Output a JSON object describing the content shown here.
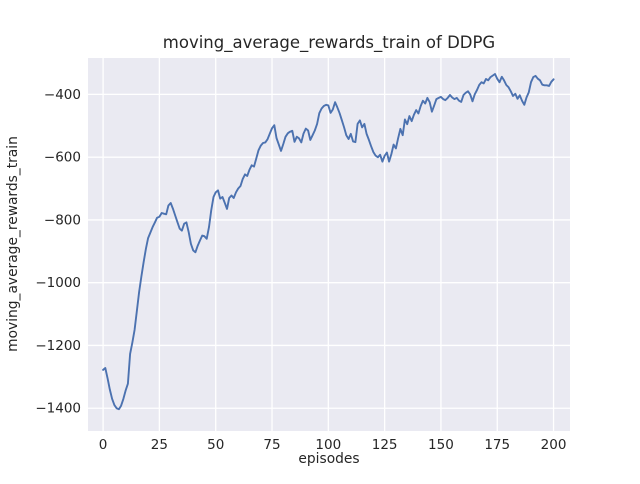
{
  "figure": {
    "title": "moving_average_rewards_train of DDPG",
    "background_color": "#ffffff",
    "panel_color": "#eaeaf2",
    "grid_color": "#ffffff",
    "text_color": "#262626"
  },
  "chart_data": {
    "type": "line",
    "title": "moving_average_rewards_train of DDPG",
    "xlabel": "episodes",
    "ylabel": "moving_average_rewards_train",
    "line_color": "#4c72b0",
    "grid": "on",
    "legend": "none",
    "xlim": [
      -6.7,
      207.3
    ],
    "ylim": [
      -1472.6,
      -284.0
    ],
    "x_ticks": {
      "values": [
        0,
        25,
        50,
        75,
        100,
        125,
        150,
        175,
        200
      ],
      "labels": [
        "0",
        "25",
        "50",
        "75",
        "100",
        "125",
        "150",
        "175",
        "200"
      ]
    },
    "y_ticks": {
      "values": [
        -400,
        -600,
        -800,
        -1000,
        -1200,
        -1400
      ],
      "labels": [
        "−400",
        "−600",
        "−800",
        "−1000",
        "−1200",
        "−1400"
      ]
    },
    "x_start": 0,
    "x_step": 1,
    "series": [
      {
        "name": "moving_average_rewards_train",
        "values": [
          -1278,
          -1272,
          -1305,
          -1340,
          -1370,
          -1390,
          -1400,
          -1403,
          -1392,
          -1370,
          -1344,
          -1322,
          -1227,
          -1190,
          -1150,
          -1089,
          -1030,
          -980,
          -935,
          -892,
          -858,
          -840,
          -823,
          -808,
          -793,
          -790,
          -778,
          -780,
          -782,
          -754,
          -746,
          -764,
          -786,
          -807,
          -828,
          -834,
          -812,
          -808,
          -839,
          -876,
          -897,
          -903,
          -882,
          -866,
          -850,
          -852,
          -860,
          -823,
          -770,
          -727,
          -712,
          -706,
          -732,
          -727,
          -745,
          -765,
          -730,
          -722,
          -730,
          -712,
          -700,
          -692,
          -670,
          -655,
          -660,
          -640,
          -626,
          -630,
          -605,
          -578,
          -563,
          -555,
          -553,
          -543,
          -525,
          -508,
          -498,
          -539,
          -560,
          -580,
          -558,
          -535,
          -524,
          -519,
          -516,
          -551,
          -535,
          -540,
          -553,
          -525,
          -509,
          -515,
          -545,
          -530,
          -515,
          -494,
          -460,
          -445,
          -437,
          -433,
          -435,
          -459,
          -448,
          -425,
          -441,
          -460,
          -482,
          -505,
          -530,
          -542,
          -526,
          -550,
          -552,
          -494,
          -483,
          -505,
          -494,
          -526,
          -545,
          -565,
          -584,
          -595,
          -600,
          -592,
          -614,
          -596,
          -585,
          -614,
          -590,
          -560,
          -572,
          -540,
          -510,
          -530,
          -480,
          -495,
          -469,
          -485,
          -465,
          -450,
          -461,
          -437,
          -420,
          -429,
          -411,
          -425,
          -455,
          -435,
          -415,
          -411,
          -408,
          -415,
          -418,
          -411,
          -402,
          -410,
          -415,
          -411,
          -420,
          -424,
          -402,
          -395,
          -390,
          -400,
          -422,
          -400,
          -386,
          -370,
          -361,
          -365,
          -351,
          -355,
          -345,
          -340,
          -335,
          -350,
          -361,
          -344,
          -355,
          -370,
          -377,
          -390,
          -405,
          -398,
          -414,
          -403,
          -420,
          -433,
          -410,
          -393,
          -361,
          -345,
          -341,
          -350,
          -355,
          -369,
          -371,
          -371,
          -373,
          -360,
          -352
        ]
      }
    ]
  }
}
